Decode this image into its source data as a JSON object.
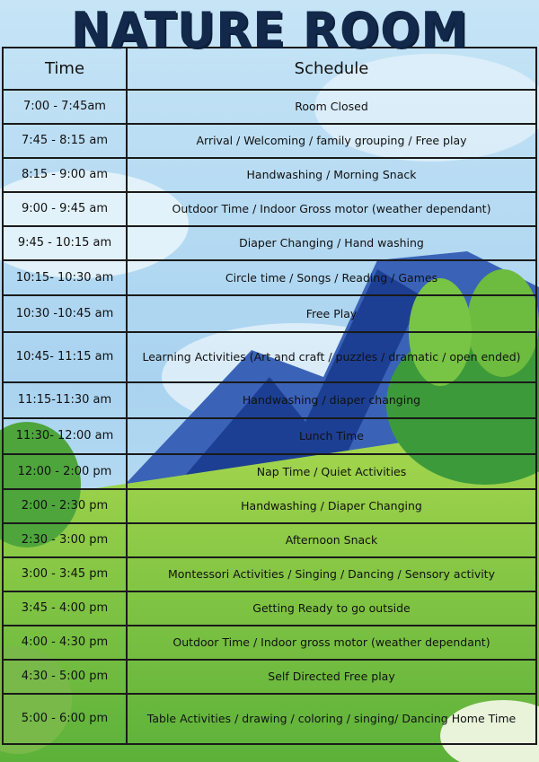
{
  "title": "NATURE ROOM",
  "headers": {
    "time": "Time",
    "schedule": "Schedule"
  },
  "rows": [
    {
      "time": "7:00 - 7:45am",
      "activity": "Room Closed"
    },
    {
      "time": "7:45 - 8:15 am",
      "activity": "Arrival / Welcoming / family grouping / Free play"
    },
    {
      "time": "8:15 - 9:00 am",
      "activity": "Handwashing / Morning Snack"
    },
    {
      "time": "9:00 - 9:45 am",
      "activity": "Outdoor Time / Indoor Gross motor (weather dependant)"
    },
    {
      "time": "9:45 - 10:15 am",
      "activity": "Diaper Changing / Hand washing"
    },
    {
      "time": "10:15- 10:30 am",
      "activity": "Circle time / Songs / Reading / Games"
    },
    {
      "time": "10:30 -10:45 am",
      "activity": "Free Play"
    },
    {
      "time": "10:45- 11:15 am",
      "activity": "Learning Activities (Art and craft / puzzles / dramatic / open ended)"
    },
    {
      "time": "11:15-11:30 am",
      "activity": "Handwashing / diaper changing"
    },
    {
      "time": "11:30- 12:00 am",
      "activity": "Lunch Time"
    },
    {
      "time": "12:00 - 2:00 pm",
      "activity": "Nap Time / Quiet Activities"
    },
    {
      "time": "2:00 - 2:30 pm",
      "activity": "Handwashing / Diaper Changing"
    },
    {
      "time": "2:30 - 3:00 pm",
      "activity": "Afternoon Snack"
    },
    {
      "time": "3:00 - 3:45 pm",
      "activity": "Montessori Activities / Singing / Dancing / Sensory activity"
    },
    {
      "time": "3:45 - 4:00 pm",
      "activity": "Getting Ready to go outside"
    },
    {
      "time": "4:00 - 4:30 pm",
      "activity": "Outdoor Time / Indoor gross motor (weather dependant)"
    },
    {
      "time": "4:30 - 5:00 pm",
      "activity": "Self Directed Free play"
    },
    {
      "time": "5:00 - 6:00 pm",
      "activity": "Table Activities / drawing / coloring / singing/ Dancing Home Time"
    }
  ]
}
